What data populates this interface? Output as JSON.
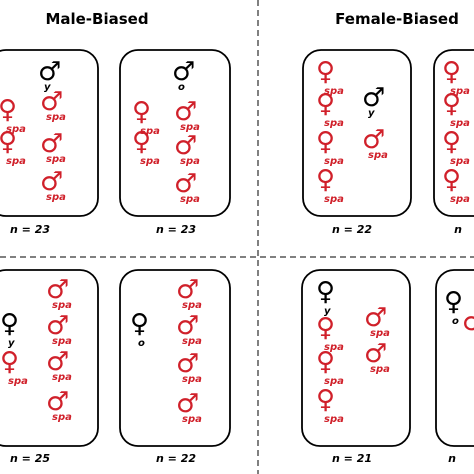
{
  "headers": [
    "Male-Biased",
    "Female-Biased"
  ],
  "boxes": [
    {
      "n": "n = 23",
      "items": [
        {
          "symbol": "♂",
          "subscript": "y",
          "color": "#000000"
        },
        {
          "symbol": "♀",
          "subscript": "spa",
          "color": "#d0202a"
        },
        {
          "symbol": "♀",
          "subscript": "spa",
          "color": "#d0202a"
        },
        {
          "symbol": "♂",
          "subscript": "spa",
          "color": "#d0202a"
        },
        {
          "symbol": "♂",
          "subscript": "spa",
          "color": "#d0202a"
        },
        {
          "symbol": "♂",
          "subscript": "spa",
          "color": "#d0202a"
        }
      ]
    },
    {
      "n": "n = 23",
      "items": [
        {
          "symbol": "♂",
          "subscript": "o",
          "color": "#000000"
        },
        {
          "symbol": "♀",
          "subscript": "spa",
          "color": "#d0202a"
        },
        {
          "symbol": "♀",
          "subscript": "spa",
          "color": "#d0202a"
        },
        {
          "symbol": "♂",
          "subscript": "spa",
          "color": "#d0202a"
        },
        {
          "symbol": "♂",
          "subscript": "spa",
          "color": "#d0202a"
        },
        {
          "symbol": "♂",
          "subscript": "spa",
          "color": "#d0202a"
        }
      ]
    },
    {
      "n": "n = 22",
      "items": [
        {
          "symbol": "♀",
          "subscript": "spa",
          "color": "#d0202a"
        },
        {
          "symbol": "♀",
          "subscript": "spa",
          "color": "#d0202a"
        },
        {
          "symbol": "♀",
          "subscript": "spa",
          "color": "#d0202a"
        },
        {
          "symbol": "♀",
          "subscript": "spa",
          "color": "#d0202a"
        },
        {
          "symbol": "♂",
          "subscript": "y",
          "color": "#000000"
        },
        {
          "symbol": "♂",
          "subscript": "spa",
          "color": "#d0202a"
        }
      ]
    },
    {
      "n": "n",
      "items": [
        {
          "symbol": "♀",
          "subscript": "spa",
          "color": "#d0202a"
        },
        {
          "symbol": "♀",
          "subscript": "spa",
          "color": "#d0202a"
        },
        {
          "symbol": "♀",
          "subscript": "spa",
          "color": "#d0202a"
        },
        {
          "symbol": "♀",
          "subscript": "spa",
          "color": "#d0202a"
        }
      ]
    },
    {
      "n": "n = 25",
      "items": [
        {
          "symbol": "♀",
          "subscript": "y",
          "color": "#000000"
        },
        {
          "symbol": "♀",
          "subscript": "spa",
          "color": "#d0202a"
        },
        {
          "symbol": "♂",
          "subscript": "spa",
          "color": "#d0202a"
        },
        {
          "symbol": "♂",
          "subscript": "spa",
          "color": "#d0202a"
        },
        {
          "symbol": "♂",
          "subscript": "spa",
          "color": "#d0202a"
        },
        {
          "symbol": "♂",
          "subscript": "spa",
          "color": "#d0202a"
        }
      ]
    },
    {
      "n": "n = 22",
      "items": [
        {
          "symbol": "♀",
          "subscript": "o",
          "color": "#000000"
        },
        {
          "symbol": "♂",
          "subscript": "spa",
          "color": "#d0202a"
        },
        {
          "symbol": "♂",
          "subscript": "spa",
          "color": "#d0202a"
        },
        {
          "symbol": "♂",
          "subscript": "spa",
          "color": "#d0202a"
        },
        {
          "symbol": "♂",
          "subscript": "spa",
          "color": "#d0202a"
        }
      ]
    },
    {
      "n": "n = 21",
      "items": [
        {
          "symbol": "♀",
          "subscript": "y",
          "color": "#000000"
        },
        {
          "symbol": "♀",
          "subscript": "spa",
          "color": "#d0202a"
        },
        {
          "symbol": "♀",
          "subscript": "spa",
          "color": "#d0202a"
        },
        {
          "symbol": "♀",
          "subscript": "spa",
          "color": "#d0202a"
        },
        {
          "symbol": "♂",
          "subscript": "spa",
          "color": "#d0202a"
        },
        {
          "symbol": "♂",
          "subscript": "spa",
          "color": "#d0202a"
        }
      ]
    },
    {
      "n": "n",
      "items": [
        {
          "symbol": "♀",
          "subscript": "o",
          "color": "#000000"
        },
        {
          "symbol": "♂",
          "subscript": "",
          "color": "#d0202a"
        }
      ]
    }
  ]
}
